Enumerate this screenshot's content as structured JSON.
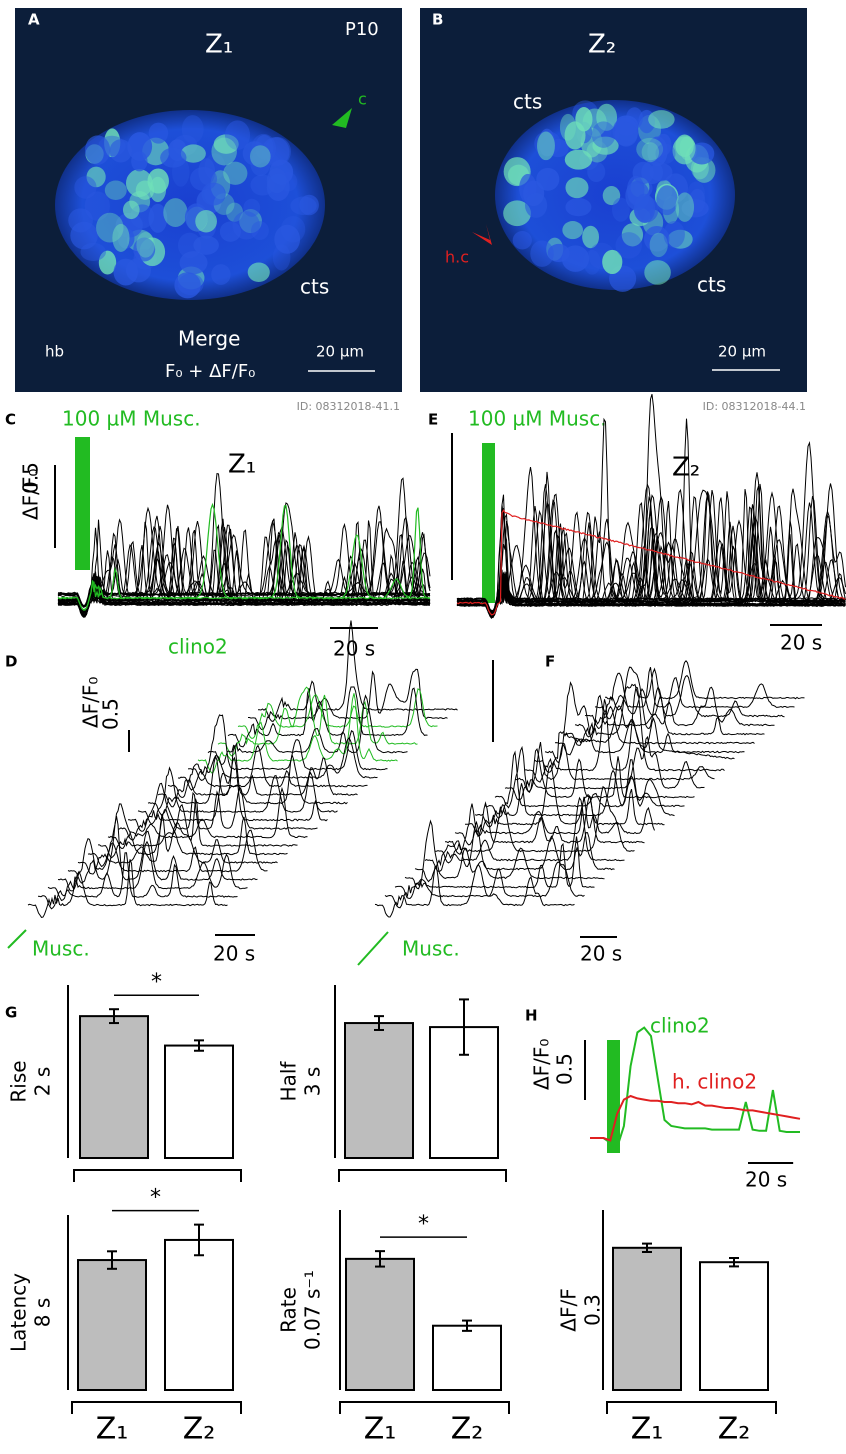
{
  "panels": {
    "A": {
      "letter": "A",
      "title": "Z₁",
      "stage": "P10",
      "arrow_label": "c",
      "region": "cts",
      "merge": "Merge",
      "formula": "F₀ + ΔF/F₀",
      "area": "hb",
      "scale": "20 µm",
      "id": "ID: 08312018-41.1"
    },
    "B": {
      "letter": "B",
      "title": "Z₂",
      "region_top": "cts",
      "region": "cts",
      "arrow_label": "h.c",
      "scale": "20 µm",
      "id": "ID: 08312018-44.1"
    },
    "C": {
      "letter": "C",
      "stim": "100 µM Musc.",
      "title": "Z₁",
      "ylabel": "ΔF/F₀",
      "scale_y": "0.5",
      "scale_x": "20 s"
    },
    "D": {
      "letter": "D",
      "highlight": "clino2",
      "ylabel": "ΔF/F₀",
      "scale_y": "0.5",
      "stim": "Musc.",
      "scale_x": "20 s"
    },
    "E": {
      "letter": "E",
      "stim": "100 µM Musc.",
      "title": "Z₂",
      "scale_x": "20 s"
    },
    "F": {
      "letter": "F",
      "stim": "Musc.",
      "scale_x": "20 s"
    },
    "G": {
      "letter": "G",
      "categories": [
        "Z₁",
        "Z₂"
      ],
      "charts": [
        {
          "label": "Rise",
          "scale_bar": {
            "value": 2,
            "label": "2 s"
          },
          "values": [
            1.64,
            1.3
          ],
          "errors": [
            0.08,
            0.06
          ],
          "significance": "*"
        },
        {
          "label": "Half",
          "scale_bar": {
            "value": 3,
            "label": "3 s"
          },
          "values": [
            2.34,
            2.27
          ],
          "errors": [
            0.12,
            0.48
          ]
        },
        {
          "label": "Latency",
          "scale_bar": {
            "value": 8,
            "label": "8 s"
          },
          "values": [
            5.94,
            6.86
          ],
          "errors": [
            0.4,
            0.7
          ],
          "significance": "*"
        },
        {
          "label": "Rate",
          "scale_bar": {
            "value": 0.07,
            "label": "0.07 s⁻¹"
          },
          "values": [
            0.051,
            0.025
          ],
          "errors": [
            0.003,
            0.002
          ],
          "significance": "*"
        },
        {
          "label": "ΔF/F",
          "scale_bar": {
            "value": 0.3,
            "label": "0.3"
          },
          "values": [
            0.237,
            0.213
          ],
          "errors": [
            0.007,
            0.007
          ]
        }
      ]
    },
    "H": {
      "letter": "H",
      "ylabel": "ΔF/F₀",
      "scale_y": {
        "value": 0.5,
        "label": "0.5"
      },
      "scale_x": "20 s",
      "x": [
        0,
        3,
        6,
        9,
        12,
        15,
        18,
        21,
        24,
        27,
        30,
        33,
        36,
        39,
        42,
        45,
        48,
        51,
        54,
        57,
        60,
        63,
        66,
        69,
        72,
        75,
        78,
        81,
        84,
        87,
        90,
        93
      ],
      "series": [
        {
          "name": "clino2",
          "color": "#22bb22",
          "values": [
            0,
            0,
            0,
            -0.04,
            -0.08,
            0.1,
            0.6,
            0.88,
            0.92,
            0.85,
            0.5,
            0.15,
            0.1,
            0.09,
            0.08,
            0.08,
            0.08,
            0.08,
            0.07,
            0.07,
            0.07,
            0.07,
            0.07,
            0.3,
            0.07,
            0.06,
            0.06,
            0.4,
            0.06,
            0.05,
            0.05,
            0.05
          ]
        },
        {
          "name": "h. clino2",
          "color": "#e02020",
          "values": [
            0,
            0,
            0,
            -0.02,
            0.2,
            0.32,
            0.35,
            0.33,
            0.32,
            0.31,
            0.31,
            0.3,
            0.3,
            0.29,
            0.29,
            0.28,
            0.3,
            0.27,
            0.27,
            0.26,
            0.25,
            0.25,
            0.24,
            0.23,
            0.23,
            0.22,
            0.21,
            0.2,
            0.19,
            0.18,
            0.17,
            0.16
          ]
        }
      ]
    }
  }
}
